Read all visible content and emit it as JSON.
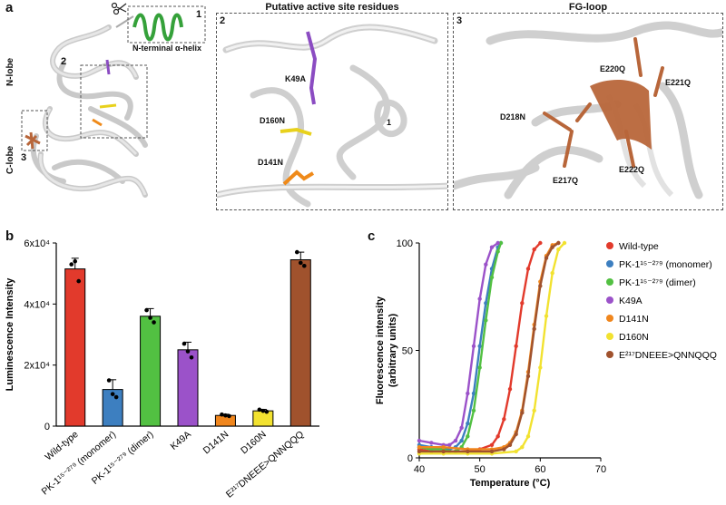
{
  "panel_a": {
    "letter": "a",
    "overview": {
      "n_lobe": "N-lobe",
      "c_lobe": "C-lobe",
      "helix_caption": "N-terminal α-helix",
      "inset_numbers": [
        "1",
        "2",
        "3"
      ]
    },
    "box2": {
      "number": "2",
      "title": "Putative active site residues",
      "residues": [
        "K49A",
        "D160N",
        "D141N"
      ],
      "helix_marker": "1"
    },
    "box3": {
      "number": "3",
      "title": "FG-loop",
      "residues": [
        "E220Q",
        "E221Q",
        "D218N",
        "E217Q",
        "E222Q"
      ]
    },
    "residue_colors": {
      "K49A": "#8b4cc2",
      "D160N": "#e8d11c",
      "D141N": "#ef8a1a",
      "fg": "#b8663a",
      "helix": "#35a13a"
    }
  },
  "panel_b": {
    "letter": "b"
  },
  "panel_c": {
    "letter": "c"
  },
  "chart_data": [
    {
      "type": "bar",
      "ylabel": "Luminescence Intensity",
      "ylim": [
        0,
        60000
      ],
      "y_ticks": [
        0,
        20000,
        40000,
        60000
      ],
      "y_tick_labels": [
        "0",
        "2x10⁴",
        "4x10⁴",
        "6x10⁴"
      ],
      "categories": [
        "Wild-type",
        "PK-1¹⁵⁻²⁷⁹ (monomer)",
        "PK-1¹⁵⁻²⁷⁹ (dimer)",
        "K49A",
        "D141N",
        "D160N",
        "E²¹⁷DNEEE>QNNQQQ"
      ],
      "values": [
        51500,
        12000,
        36000,
        25000,
        3500,
        5000,
        54500
      ],
      "errors": [
        3500,
        3200,
        2500,
        2500,
        400,
        500,
        2500
      ],
      "points": [
        [
          53000,
          54000,
          47500
        ],
        [
          15000,
          10500,
          9500
        ],
        [
          38000,
          35500,
          34000
        ],
        [
          27000,
          24500,
          22500
        ],
        [
          3800,
          3500,
          3300
        ],
        [
          5400,
          5000,
          4700
        ],
        [
          57000,
          53500,
          52500
        ]
      ],
      "colors": [
        "#e23a2c",
        "#3d7fc0",
        "#52c042",
        "#9b52c9",
        "#f0861d",
        "#f2e230",
        "#a0522d"
      ]
    },
    {
      "type": "line",
      "xlabel": "Temperature (°C)",
      "ylabel_lines": [
        "Fluorescence intensity",
        "(arbitrary units)"
      ],
      "xlim": [
        40,
        70
      ],
      "ylim": [
        0,
        100
      ],
      "x_ticks": [
        40,
        50,
        60,
        70
      ],
      "y_ticks": [
        0,
        50,
        100
      ],
      "legend_position": "right",
      "series": [
        {
          "name": "Wild-type",
          "color": "#e23a2c",
          "x": [
            40,
            42,
            44,
            46,
            48,
            50,
            52,
            53,
            54,
            55,
            56,
            57,
            58,
            59,
            60
          ],
          "y": [
            4,
            3,
            3,
            3,
            3,
            4,
            6,
            10,
            18,
            32,
            52,
            72,
            88,
            97,
            100
          ]
        },
        {
          "name": "PK-1¹⁵⁻²⁷⁹ (monomer)",
          "color": "#3d7fc0",
          "x": [
            40,
            42,
            44,
            45,
            46,
            47,
            48,
            49,
            50,
            51,
            52,
            53,
            53.5
          ],
          "y": [
            6,
            5,
            4,
            4,
            5,
            8,
            16,
            30,
            52,
            72,
            88,
            98,
            100
          ]
        },
        {
          "name": "PK-1¹⁵⁻²⁷⁹ (dimer)",
          "color": "#52c042",
          "x": [
            40,
            42,
            44,
            45,
            46,
            47,
            48,
            49,
            50,
            51,
            52,
            53,
            53.5
          ],
          "y": [
            5,
            4,
            4,
            3,
            3,
            5,
            10,
            22,
            42,
            64,
            84,
            96,
            100
          ]
        },
        {
          "name": "K49A",
          "color": "#9b52c9",
          "x": [
            40,
            42,
            44,
            45,
            46,
            47,
            48,
            49,
            50,
            51,
            52,
            53
          ],
          "y": [
            8,
            7,
            6,
            6,
            8,
            14,
            30,
            52,
            74,
            90,
            98,
            100
          ]
        },
        {
          "name": "D141N",
          "color": "#f0861d",
          "x": [
            40,
            44,
            48,
            52,
            54,
            55,
            56,
            57,
            58,
            59,
            60,
            61,
            62,
            63
          ],
          "y": [
            5,
            5,
            4,
            4,
            5,
            7,
            12,
            22,
            40,
            62,
            82,
            94,
            99,
            100
          ]
        },
        {
          "name": "D160N",
          "color": "#f2e230",
          "x": [
            40,
            44,
            48,
            52,
            56,
            57,
            58,
            59,
            60,
            61,
            62,
            63,
            64
          ],
          "y": [
            2,
            2,
            2,
            2,
            3,
            5,
            10,
            22,
            42,
            66,
            86,
            97,
            100
          ]
        },
        {
          "name": "E²¹⁷DNEEE>QNNQQQ",
          "color": "#a0522d",
          "x": [
            40,
            44,
            48,
            52,
            54,
            55,
            56,
            57,
            58,
            59,
            60,
            61,
            62,
            63
          ],
          "y": [
            3,
            3,
            3,
            3,
            4,
            6,
            11,
            21,
            38,
            60,
            80,
            93,
            98,
            100
          ]
        }
      ]
    }
  ]
}
